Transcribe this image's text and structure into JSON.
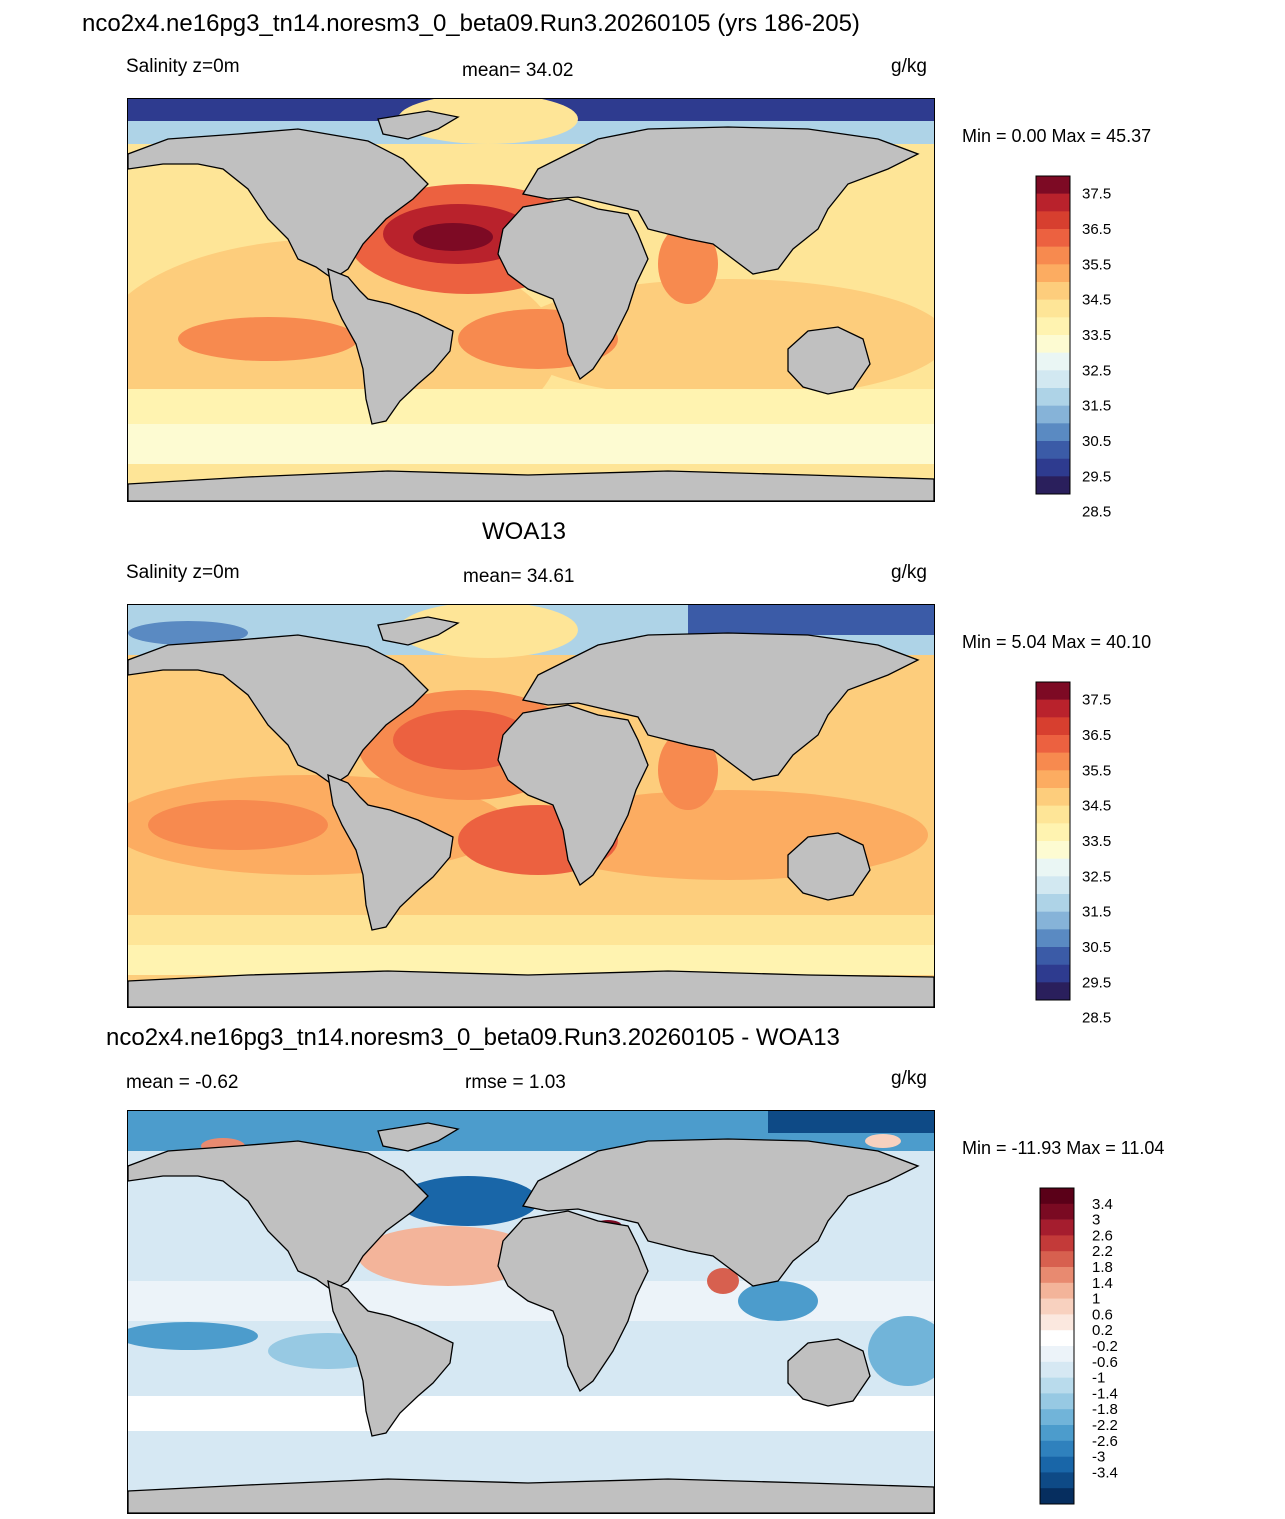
{
  "colors": {
    "land": "#c0c0c0",
    "coast": "#000000",
    "salinity_scale": [
      "#2a1f5c",
      "#2e3b8f",
      "#3b5ba7",
      "#5a8ac2",
      "#86b3d8",
      "#aed3e7",
      "#d2e8f1",
      "#eaf6f4",
      "#fdfbd2",
      "#fff3b0",
      "#fee597",
      "#fdcd7c",
      "#fcac61",
      "#f78a4f",
      "#ec6140",
      "#d73f2f",
      "#b9222c",
      "#7d0a24"
    ],
    "diff_scale": [
      "#062e5f",
      "#0e4a86",
      "#1966a8",
      "#2f81bd",
      "#4c9ccc",
      "#71b4d9",
      "#97c9e3",
      "#b9dbec",
      "#d6e8f3",
      "#ecf3f9",
      "#ffffff",
      "#fbe8df",
      "#f8d1bf",
      "#f3b49a",
      "#e88a70",
      "#d7604f",
      "#c33a39",
      "#a51d2e",
      "#7a0a22",
      "#5a0018"
    ]
  },
  "page_title": "nco2x4.ne16pg3_tn14.noresm3_0_beta09.Run3.20260105 (yrs 186-205)",
  "panels": [
    {
      "left_label": "Salinity z=0m",
      "center_label": "mean=  34.02",
      "units": "g/kg",
      "minmax": "Min =    0.00 Max =  45.37",
      "colorbar_labels": [
        "37.5",
        "36.5",
        "35.5",
        "34.5",
        "33.5",
        "32.5",
        "31.5",
        "30.5",
        "29.5",
        "28.5"
      ]
    },
    {
      "heading": "WOA13",
      "left_label": "Salinity z=0m",
      "center_label": "mean=  34.61",
      "units": "g/kg",
      "minmax": "Min =    5.04 Max =  40.10",
      "colorbar_labels": [
        "37.5",
        "36.5",
        "35.5",
        "34.5",
        "33.5",
        "32.5",
        "31.5",
        "30.5",
        "29.5",
        "28.5"
      ]
    },
    {
      "heading": "nco2x4.ne16pg3_tn14.noresm3_0_beta09.Run3.20260105 - WOA13",
      "left_label": "mean =  -0.62",
      "center_label": "rmse =    1.03",
      "units": "g/kg",
      "minmax": "Min = -11.93 Max =  11.04",
      "colorbar_labels": [
        "3.4",
        "3",
        "2.6",
        "2.2",
        "1.8",
        "1.4",
        "1",
        "0.6",
        "0.2",
        "-0.2",
        "-0.6",
        "-1",
        "-1.4",
        "-1.8",
        "-2.2",
        "-2.6",
        "-3",
        "-3.4"
      ]
    }
  ]
}
